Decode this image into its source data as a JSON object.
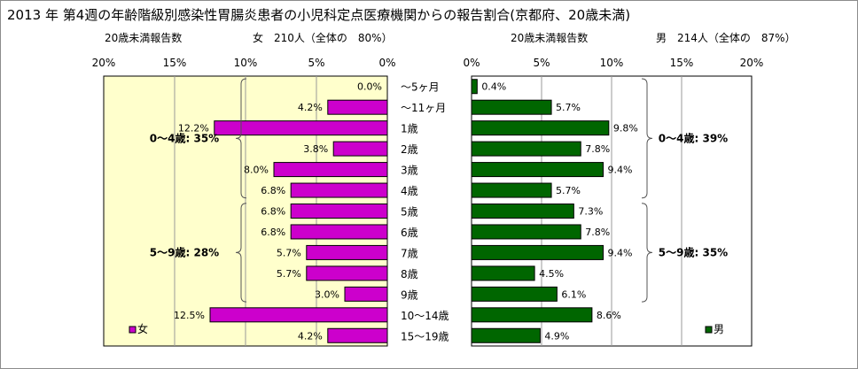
{
  "chart_data": {
    "type": "bar",
    "title": "2013 年 第4週の年齢階級別感染性胃腸炎患者の小児科定点医療機関からの報告割合(京都府、20歳未満)",
    "categories": [
      "～5ヶ月",
      "～11ヶ月",
      "1歳",
      "2歳",
      "3歳",
      "4歳",
      "5歳",
      "6歳",
      "7歳",
      "8歳",
      "9歳",
      "10～14歳",
      "15～19歳"
    ],
    "panels": [
      {
        "side": "left",
        "subtitle_left": "20歳未満報告数",
        "subtitle_right": "女　210人（全体の　80%）",
        "series": [
          {
            "name": "女",
            "color": "#cc00cc",
            "values": [
              0.0,
              4.2,
              12.2,
              3.8,
              8.0,
              6.8,
              6.8,
              6.8,
              5.7,
              5.7,
              3.0,
              12.5,
              4.2
            ],
            "labels": [
              "0.0%",
              "4.2%",
              "12.2%",
              "3.8%",
              "8.0%",
              "6.8%",
              "6.8%",
              "6.8%",
              "5.7%",
              "5.7%",
              "3.0%",
              "12.5%",
              "4.2%"
            ]
          }
        ],
        "xlim": [
          0,
          20
        ],
        "x_reversed": true,
        "ticks": [
          "20%",
          "15%",
          "10%",
          "5%",
          "0%"
        ],
        "plot_bg": "#ffffcc",
        "group_labels": [
          "0～4歳: 35%",
          "5～9歳: 28%"
        ]
      },
      {
        "side": "right",
        "subtitle_left": "20歳未満報告数",
        "subtitle_right": "男　214人（全体の　87%）",
        "series": [
          {
            "name": "男",
            "color": "#006600",
            "values": [
              0.4,
              5.7,
              9.8,
              7.8,
              9.4,
              5.7,
              7.3,
              7.8,
              9.4,
              4.5,
              6.1,
              8.6,
              4.9
            ],
            "labels": [
              "0.4%",
              "5.7%",
              "9.8%",
              "7.8%",
              "9.4%",
              "5.7%",
              "7.3%",
              "7.8%",
              "9.4%",
              "4.5%",
              "6.1%",
              "8.6%",
              "4.9%"
            ]
          }
        ],
        "xlim": [
          0,
          20
        ],
        "x_reversed": false,
        "ticks": [
          "0%",
          "5%",
          "10%",
          "15%",
          "20%"
        ],
        "plot_bg": "#ffffff",
        "group_labels": [
          "0～4歳: 39%",
          "5～9歳: 35%"
        ]
      }
    ],
    "grid": true,
    "legend": "bottom-inside"
  }
}
